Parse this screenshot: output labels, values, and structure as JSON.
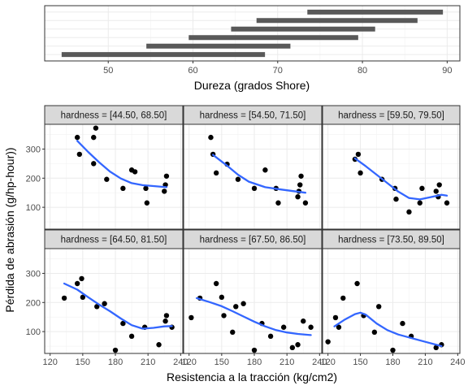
{
  "chart_data": {
    "type": "scatter",
    "top_panel": {
      "xlabel": "Dureza (grados Shore)",
      "xlim": [
        42.5,
        91.5
      ],
      "xticks": [
        "50",
        "60",
        "70",
        "80",
        "90"
      ],
      "xtick_values": [
        50,
        60,
        70,
        80,
        90
      ],
      "intervals": [
        {
          "lo": 44.5,
          "hi": 68.5
        },
        {
          "lo": 54.5,
          "hi": 71.5
        },
        {
          "lo": 59.5,
          "hi": 79.5
        },
        {
          "lo": 64.5,
          "hi": 81.5
        },
        {
          "lo": 67.5,
          "hi": 86.5
        },
        {
          "lo": 73.5,
          "hi": 89.5
        }
      ]
    },
    "xlabel": "Resistencia a la tracción (kg/cm2)",
    "ylabel": "Pérdida de abrasión (g/hp-hour))",
    "xlim": [
      115,
      242
    ],
    "ylim": [
      25,
      385
    ],
    "xticks": [
      "120",
      "150",
      "180",
      "210",
      "240"
    ],
    "xtick_values": [
      120,
      150,
      180,
      210,
      240
    ],
    "yticks": [
      "100",
      "200",
      "300"
    ],
    "ytick_values": [
      100,
      200,
      300
    ],
    "point_color": "#000000",
    "smooth_color": "#3366FF",
    "panels": [
      {
        "strip": "hardness = [44.50, 68.50]",
        "points": [
          [
            145,
            340
          ],
          [
            147,
            282
          ],
          [
            160,
            250
          ],
          [
            160,
            340
          ],
          [
            162,
            372
          ],
          [
            172,
            196
          ],
          [
            187,
            165
          ],
          [
            195,
            228
          ],
          [
            198,
            222
          ],
          [
            208,
            165
          ],
          [
            209,
            115
          ],
          [
            225,
            155
          ],
          [
            226,
            177
          ],
          [
            227,
            207
          ]
        ],
        "smooth": [
          [
            145,
            328
          ],
          [
            155,
            290
          ],
          [
            165,
            255
          ],
          [
            175,
            223
          ],
          [
            185,
            199
          ],
          [
            195,
            183
          ],
          [
            205,
            176
          ],
          [
            215,
            173
          ],
          [
            227,
            169
          ]
        ]
      },
      {
        "strip": "hardness = [54.50, 71.50]",
        "points": [
          [
            140,
            340
          ],
          [
            142,
            282
          ],
          [
            145,
            218
          ],
          [
            155,
            248
          ],
          [
            165,
            196
          ],
          [
            180,
            165
          ],
          [
            190,
            228
          ],
          [
            200,
            165
          ],
          [
            202,
            115
          ],
          [
            220,
            136
          ],
          [
            221,
            155
          ],
          [
            222,
            177
          ],
          [
            223,
            207
          ],
          [
            227,
            115
          ]
        ],
        "smooth": [
          [
            142,
            280
          ],
          [
            155,
            243
          ],
          [
            165,
            212
          ],
          [
            175,
            188
          ],
          [
            190,
            169
          ],
          [
            205,
            161
          ],
          [
            227,
            150
          ]
        ]
      },
      {
        "strip": "hardness = [59.50, 79.50]",
        "points": [
          [
            145,
            265
          ],
          [
            148,
            282
          ],
          [
            150,
            218
          ],
          [
            170,
            196
          ],
          [
            182,
            165
          ],
          [
            183,
            128
          ],
          [
            195,
            84
          ],
          [
            205,
            115
          ],
          [
            207,
            165
          ],
          [
            220,
            155
          ],
          [
            222,
            136
          ],
          [
            223,
            177
          ],
          [
            230,
            115
          ]
        ],
        "smooth": [
          [
            145,
            268
          ],
          [
            155,
            241
          ],
          [
            165,
            212
          ],
          [
            175,
            183
          ],
          [
            185,
            154
          ],
          [
            195,
            132
          ],
          [
            205,
            127
          ],
          [
            215,
            135
          ],
          [
            225,
            143
          ],
          [
            230,
            140
          ]
        ]
      },
      {
        "strip": "hardness = [64.50, 81.50]",
        "points": [
          [
            133,
            215
          ],
          [
            145,
            265
          ],
          [
            149,
            282
          ],
          [
            150,
            218
          ],
          [
            163,
            186
          ],
          [
            170,
            196
          ],
          [
            180,
            36
          ],
          [
            187,
            128
          ],
          [
            195,
            84
          ],
          [
            207,
            115
          ],
          [
            220,
            55
          ],
          [
            226,
            136
          ],
          [
            227,
            155
          ],
          [
            232,
            115
          ]
        ],
        "smooth": [
          [
            133,
            265
          ],
          [
            145,
            244
          ],
          [
            155,
            218
          ],
          [
            165,
            193
          ],
          [
            175,
            170
          ],
          [
            185,
            145
          ],
          [
            195,
            122
          ],
          [
            205,
            110
          ],
          [
            215,
            113
          ],
          [
            225,
            118
          ],
          [
            232,
            119
          ]
        ]
      },
      {
        "strip": "hardness = [67.50, 86.50]",
        "points": [
          [
            122,
            148
          ],
          [
            130,
            215
          ],
          [
            145,
            265
          ],
          [
            150,
            218
          ],
          [
            152,
            155
          ],
          [
            160,
            98
          ],
          [
            163,
            186
          ],
          [
            170,
            196
          ],
          [
            180,
            36
          ],
          [
            187,
            128
          ],
          [
            195,
            84
          ],
          [
            207,
            115
          ],
          [
            215,
            45
          ],
          [
            220,
            55
          ],
          [
            225,
            136
          ],
          [
            232,
            115
          ]
        ],
        "smooth": [
          [
            127,
            215
          ],
          [
            140,
            200
          ],
          [
            150,
            187
          ],
          [
            160,
            170
          ],
          [
            170,
            152
          ],
          [
            180,
            134
          ],
          [
            190,
            118
          ],
          [
            200,
            105
          ],
          [
            210,
            97
          ],
          [
            220,
            92
          ],
          [
            232,
            88
          ]
        ]
      },
      {
        "strip": "hardness = [73.50, 89.50]",
        "points": [
          [
            120,
            65
          ],
          [
            127,
            148
          ],
          [
            130,
            115
          ],
          [
            134,
            215
          ],
          [
            147,
            265
          ],
          [
            153,
            155
          ],
          [
            163,
            98
          ],
          [
            167,
            186
          ],
          [
            180,
            36
          ],
          [
            189,
            128
          ],
          [
            197,
            84
          ],
          [
            220,
            45
          ],
          [
            225,
            55
          ]
        ],
        "smooth": [
          [
            126,
            118
          ],
          [
            135,
            140
          ],
          [
            145,
            160
          ],
          [
            150,
            165
          ],
          [
            155,
            158
          ],
          [
            165,
            128
          ],
          [
            175,
            105
          ],
          [
            185,
            90
          ],
          [
            195,
            80
          ],
          [
            210,
            65
          ],
          [
            225,
            50
          ]
        ]
      }
    ]
  }
}
